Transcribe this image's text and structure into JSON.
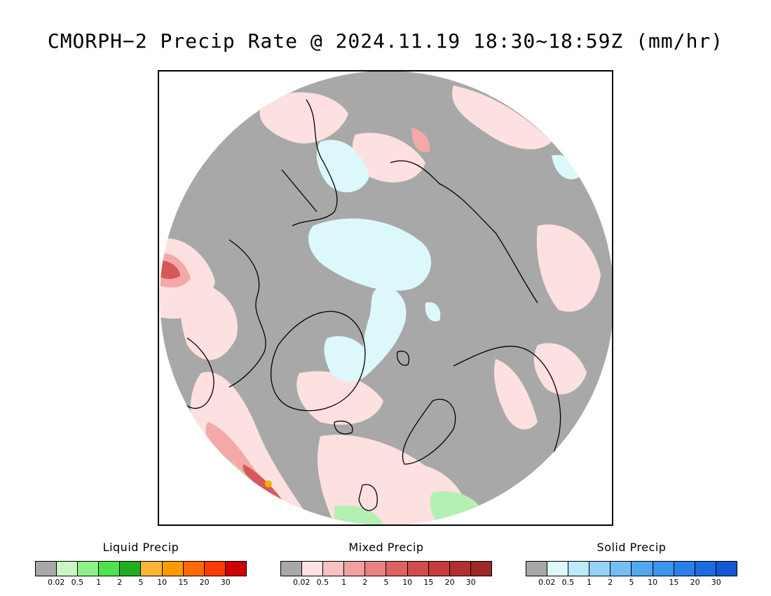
{
  "title": "CMORPH−2 Precip Rate @ 2024.11.19 18:30~18:59Z (mm/hr)",
  "map": {
    "projection": "north polar stereographic",
    "background_color": "#a8a8a8",
    "coastline_color": "#000000",
    "colors": {
      "mixed_light": "#fde0e0",
      "mixed_mid": "#f5a8a8",
      "mixed_dark": "#d65858",
      "solid_light": "#dcf8fb",
      "liquid_light": "#b4f0b4",
      "liquid_mid": "#5adc5a",
      "liquid_dark": "#28b428",
      "liquid_orange": "#f0b400"
    }
  },
  "legends": [
    {
      "title": "Liquid Precip",
      "colors": [
        "#a8a8a8",
        "#c8f7c4",
        "#8ff08a",
        "#4fe24f",
        "#20ae20",
        "#fcb53a",
        "#ff9a00",
        "#ff6a00",
        "#ff3c00",
        "#d00000"
      ],
      "ticks": [
        "0.02",
        "0.5",
        "1",
        "2",
        "5",
        "10",
        "15",
        "20",
        "30"
      ]
    },
    {
      "title": "Mixed Precip",
      "colors": [
        "#a8a8a8",
        "#fde2e2",
        "#f7c2c2",
        "#f0a0a0",
        "#e88282",
        "#dd6262",
        "#d24c4c",
        "#c43c3c",
        "#b23030",
        "#9c2828"
      ],
      "ticks": [
        "0.02",
        "0.5",
        "1",
        "2",
        "5",
        "10",
        "15",
        "20",
        "30"
      ]
    },
    {
      "title": "Solid Precip",
      "colors": [
        "#a8a8a8",
        "#dff9fb",
        "#b8ecf8",
        "#96d2f6",
        "#74bef2",
        "#52a8ee",
        "#3c94ec",
        "#2a80e8",
        "#1c6ae0",
        "#1456d4"
      ],
      "ticks": [
        "0.02",
        "0.5",
        "1",
        "2",
        "5",
        "10",
        "15",
        "20",
        "30"
      ]
    }
  ]
}
